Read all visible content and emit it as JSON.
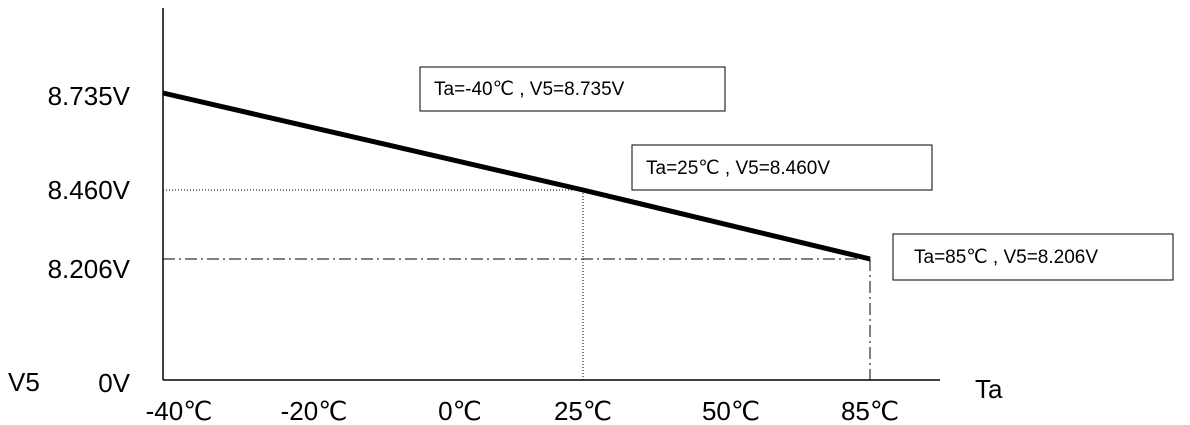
{
  "chart_data": {
    "type": "line",
    "xlabel": "Ta",
    "ylabel": "V5",
    "x_tick_labels": [
      "-40℃",
      "-20℃",
      "0℃",
      "25℃",
      "50℃",
      "85℃"
    ],
    "y_tick_labels": [
      "0V",
      "8.206V",
      "8.460V",
      "8.735V"
    ],
    "series": [
      {
        "x": [
          -40,
          25,
          85
        ],
        "y": [
          8.735,
          8.46,
          8.206
        ]
      }
    ],
    "reference_points": [
      {
        "x": 25,
        "y": 8.46,
        "style": "dotted"
      },
      {
        "x": 85,
        "y": 8.206,
        "style": "dash-dot"
      }
    ],
    "annotations": [
      {
        "text": "Ta=-40℃ , V5=8.735V"
      },
      {
        "text": "Ta=25℃ , V5=8.460V"
      },
      {
        "text": "Ta=85℃ , V5=8.206V"
      }
    ],
    "grid": false,
    "legend": "none",
    "line_color": "#000000"
  }
}
